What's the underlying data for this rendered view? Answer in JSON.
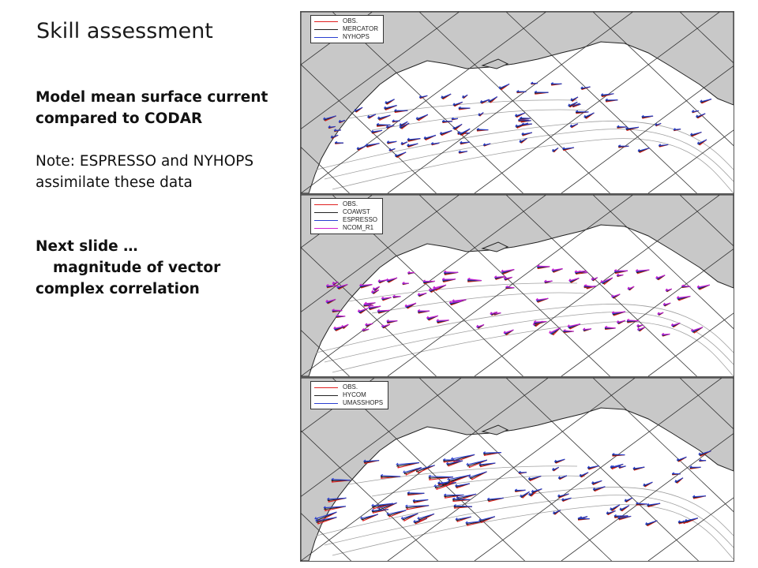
{
  "slide": {
    "title": "Skill assessment",
    "heading": "Model mean surface current compared to CODAR",
    "note": "Note: ESPRESSO and NYHOPS assimilate these data",
    "next_label": "Next slide …",
    "next_line1": "magnitude of vector",
    "next_line2": "complex correlation"
  },
  "panels": [
    {
      "legend": [
        {
          "label": "OBS.",
          "color": "#e02020"
        },
        {
          "label": "MERCATOR",
          "color": "#222222"
        },
        {
          "label": "NYHOPS",
          "color": "#2a3fd0"
        }
      ]
    },
    {
      "legend": [
        {
          "label": "OBS.",
          "color": "#e02020"
        },
        {
          "label": "COAWST",
          "color": "#222222"
        },
        {
          "label": "ESPRESSO",
          "color": "#2a3fd0"
        },
        {
          "label": "NCOM_R1",
          "color": "#d020d0"
        }
      ]
    },
    {
      "legend": [
        {
          "label": "OBS.",
          "color": "#e02020"
        },
        {
          "label": "HYCOM",
          "color": "#222222"
        },
        {
          "label": "UMASSHOPS",
          "color": "#2a3fd0"
        }
      ]
    }
  ]
}
